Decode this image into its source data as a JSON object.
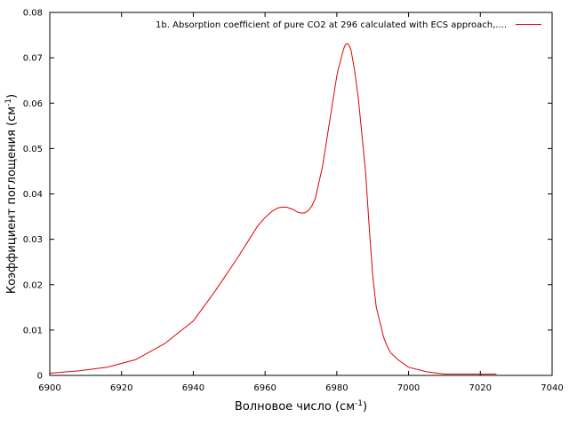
{
  "chart_data": {
    "type": "line",
    "title": "",
    "xlabel": "Волновое число (см",
    "xlabel_sup": "-1",
    "xlabel_close": ")",
    "ylabel": "Коэффициент поглощения (см",
    "ylabel_sup": "-1",
    "ylabel_close": ")",
    "xlim": [
      6900,
      7040
    ],
    "ylim": [
      0,
      0.08
    ],
    "xticks": [
      6900,
      6920,
      6940,
      6960,
      6980,
      7000,
      7020,
      7040
    ],
    "yticks": [
      0,
      0.01,
      0.02,
      0.03,
      0.04,
      0.05,
      0.06,
      0.07,
      0.08
    ],
    "grid": false,
    "legend_position": "top-right",
    "series": [
      {
        "name": "1b. Absorption coefficient of pure CO2 at 296 calculated with ECS approach,....",
        "color": "#e00000",
        "x": [
          6900,
          6908,
          6916,
          6924,
          6932,
          6940,
          6946,
          6952,
          6956,
          6958,
          6960,
          6962,
          6963,
          6964,
          6965,
          6966,
          6967,
          6968,
          6969,
          6970,
          6971,
          6972,
          6973,
          6974,
          6975,
          6976,
          6977,
          6978,
          6979,
          6980,
          6980.5,
          6981,
          6981.5,
          6982,
          6982.5,
          6983,
          6983.5,
          6984,
          6985,
          6986,
          6987,
          6988,
          6988.5,
          6989,
          6990,
          6991,
          6992,
          6993,
          6994,
          6995,
          6997,
          7000,
          7005,
          7010,
          7020,
          7024.5
        ],
        "y": [
          0.0005,
          0.001,
          0.0018,
          0.0035,
          0.007,
          0.012,
          0.0185,
          0.0255,
          0.0305,
          0.033,
          0.0348,
          0.0362,
          0.0367,
          0.037,
          0.0371,
          0.0371,
          0.0368,
          0.0365,
          0.036,
          0.0358,
          0.0358,
          0.0363,
          0.0373,
          0.039,
          0.0425,
          0.046,
          0.051,
          0.056,
          0.061,
          0.066,
          0.0678,
          0.0692,
          0.0708,
          0.0722,
          0.073,
          0.0731,
          0.0727,
          0.0715,
          0.067,
          0.061,
          0.053,
          0.045,
          0.039,
          0.033,
          0.022,
          0.015,
          0.0118,
          0.0085,
          0.0065,
          0.005,
          0.0035,
          0.0018,
          0.0008,
          0.0003,
          0.0003,
          0.0003
        ]
      }
    ]
  }
}
